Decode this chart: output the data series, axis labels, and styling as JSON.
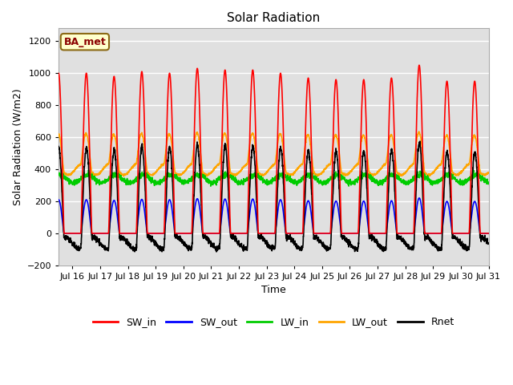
{
  "title": "Solar Radiation",
  "xlabel": "Time",
  "ylabel": "Solar Radiation (W/m2)",
  "ylim": [
    -200,
    1280
  ],
  "yticks": [
    -200,
    0,
    200,
    400,
    600,
    800,
    1000,
    1200
  ],
  "label": "BA_met",
  "series": {
    "SW_in": {
      "color": "#ff0000",
      "linewidth": 1.2
    },
    "SW_out": {
      "color": "#0000ff",
      "linewidth": 1.2
    },
    "LW_in": {
      "color": "#00cc00",
      "linewidth": 1.2
    },
    "LW_out": {
      "color": "#ffa500",
      "linewidth": 1.2
    },
    "Rnet": {
      "color": "#000000",
      "linewidth": 1.2
    }
  },
  "start_day": 15.5,
  "end_day": 31.0,
  "n_points": 3000,
  "background_color": "#ffffff",
  "plot_bg_color": "#e0e0e0",
  "grid_color": "#ffffff",
  "legend_ncol": 5
}
